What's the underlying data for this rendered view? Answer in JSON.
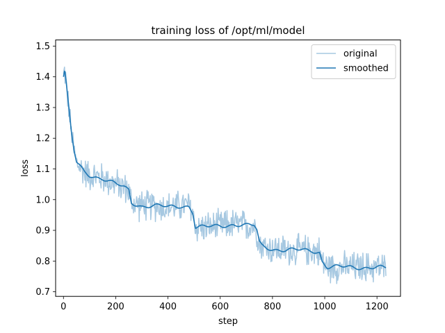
{
  "chart_data": {
    "type": "line",
    "title": "training loss of /opt/ml/model",
    "xlabel": "step",
    "ylabel": "loss",
    "xlim": [
      -30,
      1290
    ],
    "ylim": [
      0.685,
      1.52
    ],
    "xticks": [
      0,
      200,
      400,
      600,
      800,
      1000,
      1200
    ],
    "yticks": [
      0.7,
      0.8,
      0.9,
      1.0,
      1.1,
      1.2,
      1.3,
      1.4,
      1.5
    ],
    "grid": false,
    "legend_position": "top-right",
    "series": [
      {
        "name": "original",
        "color": "#a6c8e1",
        "noise_amplitude": 0.06,
        "x": [
          0,
          5,
          10,
          20,
          30,
          40,
          50,
          60,
          80,
          100,
          150,
          200,
          230,
          250,
          260,
          300,
          350,
          400,
          450,
          480,
          495,
          505,
          520,
          550,
          600,
          650,
          700,
          730,
          740,
          750,
          760,
          800,
          850,
          900,
          950,
          980,
          990,
          1010,
          1030,
          1050,
          1100,
          1150,
          1200,
          1235
        ],
        "values": [
          1.4,
          1.42,
          1.38,
          1.3,
          1.22,
          1.16,
          1.12,
          1.11,
          1.09,
          1.08,
          1.07,
          1.05,
          1.04,
          1.03,
          0.99,
          0.98,
          0.98,
          0.975,
          0.98,
          0.98,
          0.96,
          0.91,
          0.91,
          0.91,
          0.915,
          0.92,
          0.915,
          0.915,
          0.9,
          0.86,
          0.85,
          0.84,
          0.835,
          0.835,
          0.835,
          0.83,
          0.8,
          0.78,
          0.78,
          0.78,
          0.78,
          0.78,
          0.78,
          0.775
        ]
      },
      {
        "name": "smoothed",
        "color": "#1f77b4",
        "x": [
          0,
          5,
          10,
          20,
          30,
          40,
          50,
          60,
          80,
          100,
          150,
          200,
          230,
          250,
          260,
          300,
          350,
          400,
          450,
          480,
          495,
          505,
          520,
          550,
          600,
          650,
          700,
          730,
          740,
          750,
          760,
          800,
          850,
          900,
          950,
          980,
          990,
          1010,
          1030,
          1050,
          1100,
          1150,
          1200,
          1235
        ],
        "values": [
          1.4,
          1.42,
          1.38,
          1.3,
          1.22,
          1.16,
          1.12,
          1.11,
          1.09,
          1.08,
          1.07,
          1.05,
          1.04,
          1.03,
          0.99,
          0.98,
          0.98,
          0.975,
          0.98,
          0.98,
          0.96,
          0.91,
          0.91,
          0.91,
          0.915,
          0.92,
          0.915,
          0.915,
          0.9,
          0.86,
          0.85,
          0.84,
          0.835,
          0.835,
          0.835,
          0.83,
          0.8,
          0.78,
          0.78,
          0.78,
          0.78,
          0.78,
          0.78,
          0.775
        ]
      }
    ]
  }
}
